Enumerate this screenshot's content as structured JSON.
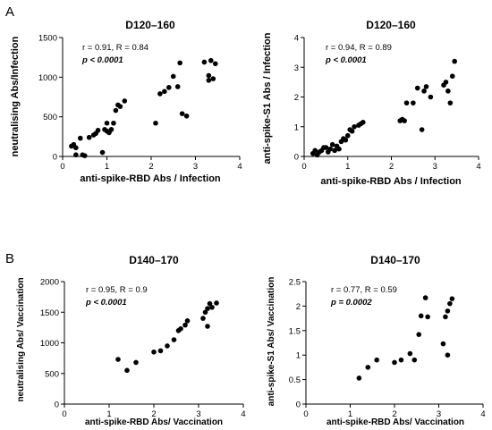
{
  "panels": [
    {
      "letter": "A"
    },
    {
      "letter": "B"
    }
  ],
  "chart_data": [
    {
      "type": "scatter",
      "title": "D120–160",
      "xlabel": "anti-spike-RBD Abs / Infection",
      "ylabel": "neutralising Abs/Infection",
      "xlim": [
        0,
        4
      ],
      "ylim": [
        0,
        1500
      ],
      "xticks": [
        0,
        1,
        2,
        3,
        4
      ],
      "yticks": [
        0,
        500,
        1000,
        1500
      ],
      "grid": false,
      "stats": {
        "line1": "r = 0.91, R = 0.84",
        "line2": "p < 0.0001"
      },
      "x": [
        0.2,
        0.25,
        0.3,
        0.3,
        0.4,
        0.45,
        0.5,
        0.6,
        0.7,
        0.75,
        0.8,
        0.9,
        0.95,
        1.0,
        1.0,
        1.05,
        1.1,
        1.15,
        1.2,
        1.25,
        1.3,
        1.4,
        2.1,
        2.2,
        2.3,
        2.4,
        2.5,
        2.6,
        2.65,
        2.7,
        2.8,
        3.2,
        3.3,
        3.3,
        3.35,
        3.4,
        3.45
      ],
      "y": [
        130,
        150,
        20,
        110,
        230,
        20,
        10,
        240,
        270,
        290,
        330,
        50,
        340,
        420,
        320,
        300,
        340,
        420,
        580,
        650,
        630,
        700,
        420,
        790,
        820,
        870,
        1010,
        880,
        1180,
        540,
        510,
        1190,
        960,
        1020,
        1210,
        980,
        1170
      ]
    },
    {
      "type": "scatter",
      "title": "D120–160",
      "xlabel": "anti-spike-RBD Abs / Infection",
      "ylabel": "anti-spike-S1 Abs / Infection",
      "xlim": [
        0,
        4
      ],
      "ylim": [
        0,
        4
      ],
      "xticks": [
        0,
        1,
        2,
        3,
        4
      ],
      "yticks": [
        0,
        1,
        2,
        3,
        4
      ],
      "grid": false,
      "stats": {
        "line1": "r = 0.94, R = 0.89",
        "line2": "p < 0.0001"
      },
      "x": [
        0.2,
        0.25,
        0.3,
        0.35,
        0.4,
        0.45,
        0.5,
        0.55,
        0.6,
        0.65,
        0.7,
        0.75,
        0.8,
        0.85,
        0.9,
        0.95,
        1.0,
        1.05,
        1.1,
        1.15,
        1.25,
        1.3,
        1.35,
        2.2,
        2.25,
        2.3,
        2.35,
        2.5,
        2.6,
        2.7,
        2.75,
        2.8,
        2.9,
        3.2,
        3.25,
        3.3,
        3.35,
        3.4,
        3.45
      ],
      "y": [
        0.1,
        0.2,
        0.05,
        0.15,
        0.2,
        0.3,
        0.3,
        0.15,
        0.25,
        0.4,
        0.2,
        0.35,
        0.25,
        0.5,
        0.6,
        0.55,
        0.7,
        0.9,
        0.85,
        1.0,
        1.05,
        1.1,
        1.15,
        1.2,
        1.25,
        1.2,
        1.8,
        1.8,
        2.3,
        0.9,
        2.2,
        2.35,
        2.0,
        2.4,
        2.5,
        2.2,
        1.8,
        2.7,
        3.2
      ]
    },
    {
      "type": "scatter",
      "title": "D140–170",
      "xlabel": "anti-spike-RBD Abs/ Vaccination",
      "ylabel": "neutralising Abs/ Vaccination",
      "xlim": [
        0,
        4
      ],
      "ylim": [
        0,
        2000
      ],
      "xticks": [
        0,
        1,
        2,
        3,
        4
      ],
      "yticks": [
        0,
        500,
        1000,
        1500,
        2000
      ],
      "grid": false,
      "stats": {
        "line1": "r = 0.95, R = 0.9",
        "line2": "p < 0.0001"
      },
      "x": [
        1.2,
        1.4,
        1.6,
        2.0,
        2.15,
        2.3,
        2.45,
        2.55,
        2.6,
        2.7,
        2.75,
        3.1,
        3.15,
        3.2,
        3.25,
        3.3,
        3.4,
        3.2
      ],
      "y": [
        730,
        550,
        680,
        850,
        870,
        950,
        1050,
        1200,
        1230,
        1290,
        1360,
        1400,
        1500,
        1560,
        1640,
        1580,
        1650,
        1270
      ]
    },
    {
      "type": "scatter",
      "title": "D140–170",
      "xlabel": "anti-spike-RBD Abs/ Vaccination",
      "ylabel": "anti-spike-S1 Abs/ Vaccination",
      "xlim": [
        0,
        4
      ],
      "ylim": [
        0,
        2.5
      ],
      "xticks": [
        0,
        1,
        2,
        3,
        4
      ],
      "yticks": [
        0,
        0.5,
        1.0,
        1.5,
        2.0,
        2.5
      ],
      "grid": false,
      "stats": {
        "line1": "r = 0.77, R = 0.59",
        "line2": "p = 0.0002"
      },
      "x": [
        1.2,
        1.4,
        1.6,
        2.0,
        2.15,
        2.35,
        2.45,
        2.55,
        2.6,
        2.7,
        2.75,
        3.1,
        3.15,
        3.2,
        3.25,
        3.3,
        3.2
      ],
      "y": [
        0.53,
        0.75,
        0.9,
        0.85,
        0.9,
        1.03,
        0.9,
        1.42,
        1.8,
        2.17,
        1.78,
        1.23,
        1.78,
        1.9,
        2.05,
        2.15,
        1.0
      ]
    }
  ]
}
